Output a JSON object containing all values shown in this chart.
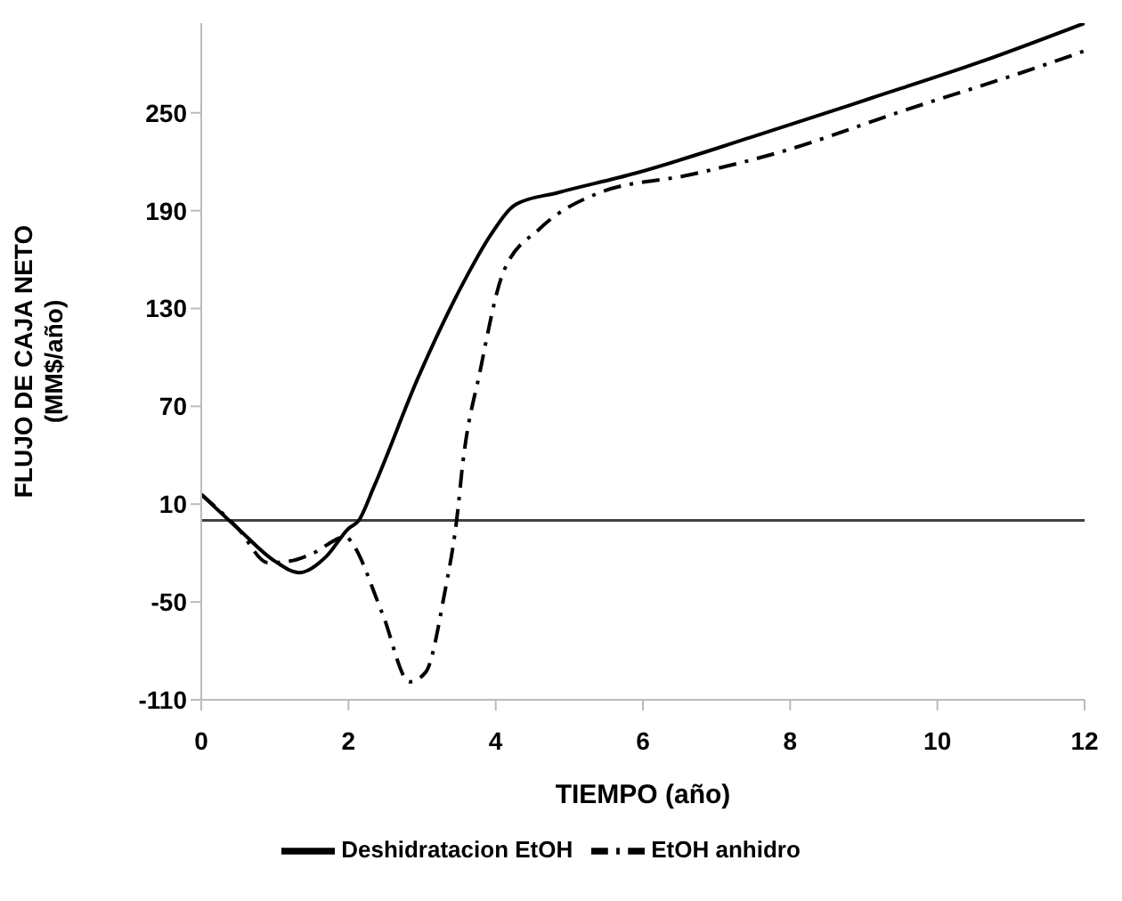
{
  "chart_data": {
    "type": "line",
    "xlabel": "TIEMPO (año)",
    "ylabel": "FLUJO DE CAJA NETO\n(MM$/año)",
    "xlim": [
      0,
      12
    ],
    "xticks": [
      0,
      2,
      4,
      6,
      8,
      10,
      12
    ],
    "ylim": [
      -110,
      305
    ],
    "yticks": [
      -110,
      -50,
      10,
      70,
      130,
      190,
      250
    ],
    "grid": false,
    "legend": "bottom",
    "marker": "none",
    "ref_lines": [
      {
        "axis": "y",
        "value": 0,
        "color": "#404040"
      }
    ],
    "series": [
      {
        "name": "Deshidratacion EtOH",
        "color": "#000000",
        "line_style": "solid",
        "x": [
          0,
          0.5,
          1,
          1.33,
          1.7,
          2,
          2.14,
          2.34,
          2.95,
          3.61,
          3.93,
          4.28,
          4.84,
          5.9,
          7.47,
          9.1,
          10.57,
          12
        ],
        "values": [
          16,
          -5,
          -25,
          -32,
          -22,
          -5,
          0,
          20,
          88,
          150,
          175,
          194,
          201,
          213,
          235,
          259,
          281,
          305
        ]
      },
      {
        "name": "EtOH anhidro",
        "color": "#000000",
        "line_style": "dashed",
        "x": [
          0,
          0.5,
          0.91,
          1.2,
          1.48,
          1.97,
          2.05,
          2.46,
          2.83,
          3.05,
          3.3,
          3.49,
          3.54,
          3.79,
          4.11,
          4.6,
          5.41,
          6.64,
          7.87,
          9.52,
          11.56,
          12
        ],
        "values": [
          16,
          -5,
          -26,
          -25,
          -21,
          -10,
          -14,
          -57,
          -99,
          -93,
          -46,
          8,
          30,
          92,
          153,
          179,
          201,
          212,
          226,
          251,
          281,
          288
        ]
      }
    ]
  }
}
